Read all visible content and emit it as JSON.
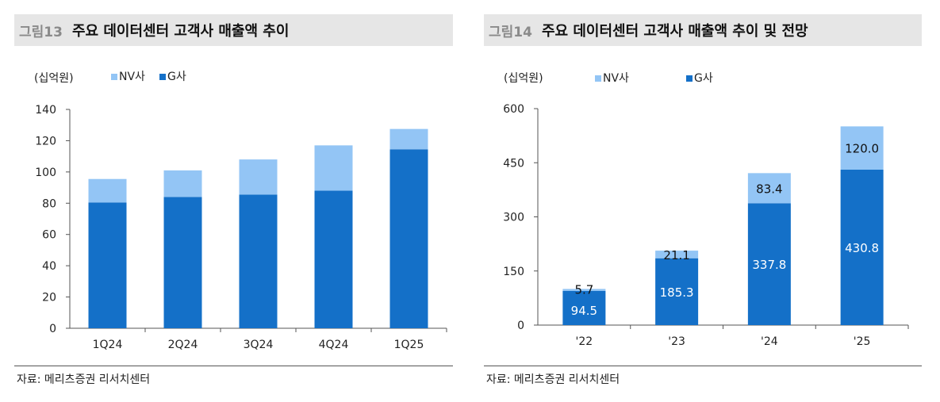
{
  "colors": {
    "nv": "#93c5f5",
    "g": "#1470c8",
    "axis": "#555555",
    "title_bg": "#e6e6e6"
  },
  "charts": [
    {
      "fig_num": "그림13",
      "title": "주요 데이터센터 고객사 매출액 추이",
      "source": "자료: 메리츠증권 리서치센터",
      "chart_data": {
        "type": "bar",
        "stacked": true,
        "unit_label": "(십억원)",
        "categories": [
          "1Q24",
          "2Q24",
          "3Q24",
          "4Q24",
          "1Q25"
        ],
        "series": [
          {
            "name": "NV사",
            "values": [
              15,
              17,
              22.5,
              29,
              13
            ]
          },
          {
            "name": "G사",
            "values": [
              80.5,
              84,
              85.5,
              88,
              114.5
            ]
          }
        ],
        "ylim": [
          0,
          140
        ],
        "yticks": [
          "0",
          "20",
          "40",
          "60",
          "80",
          "100",
          "120",
          "140"
        ],
        "legend_position": "top-left",
        "data_labels": false
      }
    },
    {
      "fig_num": "그림14",
      "title": "주요 데이터센터 고객사 매출액 추이 및 전망",
      "source": "자료: 메리츠증권 리서치센터",
      "chart_data": {
        "type": "bar",
        "stacked": true,
        "unit_label": "(십억원)",
        "categories": [
          "'22",
          "'23",
          "'24",
          "'25"
        ],
        "series": [
          {
            "name": "NV사",
            "values": [
              5.7,
              21.1,
              83.4,
              120.0
            ],
            "labels": [
              "5.7",
              "21.1",
              "83.4",
              "120.0"
            ]
          },
          {
            "name": "G사",
            "values": [
              94.5,
              185.3,
              337.8,
              430.8
            ],
            "labels": [
              "94.5",
              "185.3",
              "337.8",
              "430.8"
            ]
          }
        ],
        "ylim": [
          0,
          600
        ],
        "yticks": [
          "0",
          "150",
          "300",
          "450",
          "600"
        ],
        "legend_position": "top-left",
        "data_labels": true
      }
    }
  ]
}
